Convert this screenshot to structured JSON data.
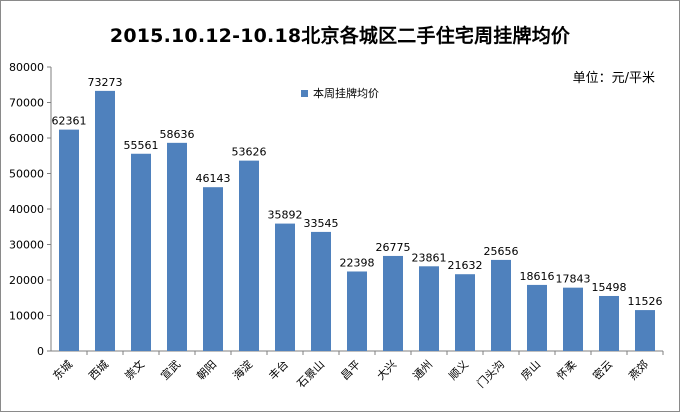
{
  "chart_data": {
    "type": "bar",
    "title": "2015.10.12-10.18北京各城区二手住宅周挂牌均价",
    "unit_label": "单位：元/平米",
    "categories": [
      "东城",
      "西城",
      "崇文",
      "宣武",
      "朝阳",
      "海淀",
      "丰台",
      "石景山",
      "昌平",
      "大兴",
      "通州",
      "顺义",
      "门头沟",
      "房山",
      "怀柔",
      "密云",
      "燕郊"
    ],
    "series": [
      {
        "name": "本周挂牌均价",
        "values": [
          62361,
          73273,
          55561,
          58636,
          46143,
          53626,
          35892,
          33545,
          22398,
          26775,
          23861,
          21632,
          25656,
          18616,
          17843,
          15498,
          11526
        ]
      }
    ],
    "ylim": [
      0,
      80000
    ],
    "yticks": [
      0,
      10000,
      20000,
      30000,
      40000,
      50000,
      60000,
      70000,
      80000
    ],
    "legend_position": "top",
    "grid": false,
    "bar_color": "#4f81bd"
  }
}
